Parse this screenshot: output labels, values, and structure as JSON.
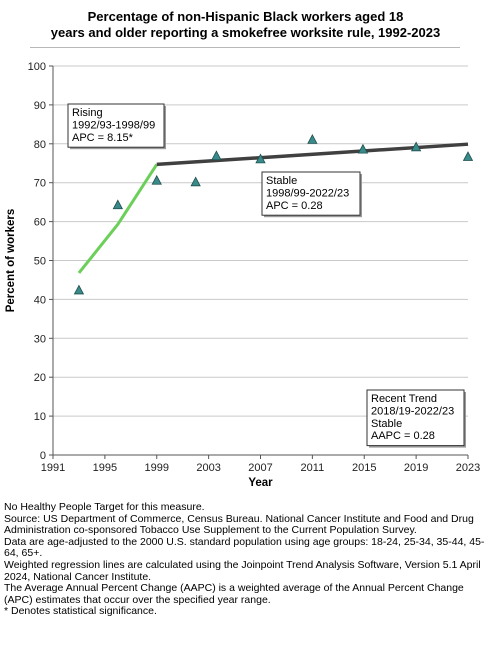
{
  "chart_data": {
    "type": "scatter",
    "title_lines": [
      "Percentage of non-Hispanic Black workers aged 18",
      "years and older reporting a smokefree worksite rule, 1992-2023"
    ],
    "xlabel": "Year",
    "ylabel": "Percent of workers",
    "xlim": [
      1991,
      2023
    ],
    "ylim": [
      0,
      100
    ],
    "x_ticks": [
      1991,
      1995,
      1999,
      2003,
      2007,
      2011,
      2015,
      2019,
      2023
    ],
    "y_ticks": [
      0,
      10,
      20,
      30,
      40,
      50,
      60,
      70,
      80,
      90,
      100
    ],
    "grid": "horizontal",
    "points": {
      "marker": "triangle",
      "color": "#3a8a8a",
      "x": [
        1993,
        1996,
        1999,
        2002,
        2003.6,
        2007,
        2011,
        2014.9,
        2019,
        2023
      ],
      "y": [
        42.3,
        64.2,
        70.5,
        70.1,
        76.8,
        76.0,
        81.0,
        78.5,
        79.1,
        76.6
      ]
    },
    "trend_segments": [
      {
        "color": "#6ccf5a",
        "x": [
          1993,
          1996,
          1999
        ],
        "y": [
          46.8,
          59.3,
          74.7
        ]
      },
      {
        "color": "#404040",
        "x": [
          1999,
          2023
        ],
        "y": [
          74.7,
          79.9
        ]
      }
    ],
    "annotations": [
      {
        "name": "rising",
        "lines": [
          "Rising",
          "1992/93-1998/99",
          "APC =  8.15*"
        ]
      },
      {
        "name": "stable",
        "lines": [
          "Stable",
          "1998/99-2022/23",
          "APC =  0.28"
        ]
      },
      {
        "name": "recent-trend",
        "lines": [
          "Recent Trend",
          "2018/19-2022/23",
          "Stable",
          "AAPC =  0.28"
        ]
      }
    ]
  },
  "notes": [
    "No Healthy People Target for this measure.",
    "Source: US Department of Commerce, Census Bureau. National Cancer Institute and Food and Drug Administration co-sponsored Tobacco Use Supplement to the Current Population Survey.",
    "Data are age-adjusted to the 2000 U.S. standard population using age groups: 18-24, 25-34, 35-44, 45-64, 65+.",
    "Weighted regression lines are calculated using the Joinpoint Trend Analysis Software, Version 5.1 April 2024, National Cancer Institute.",
    "The Average Annual Percent Change (AAPC) is a weighted average of the Annual Percent Change (APC) estimates that occur over the specified year range.",
    "* Denotes statistical significance."
  ]
}
